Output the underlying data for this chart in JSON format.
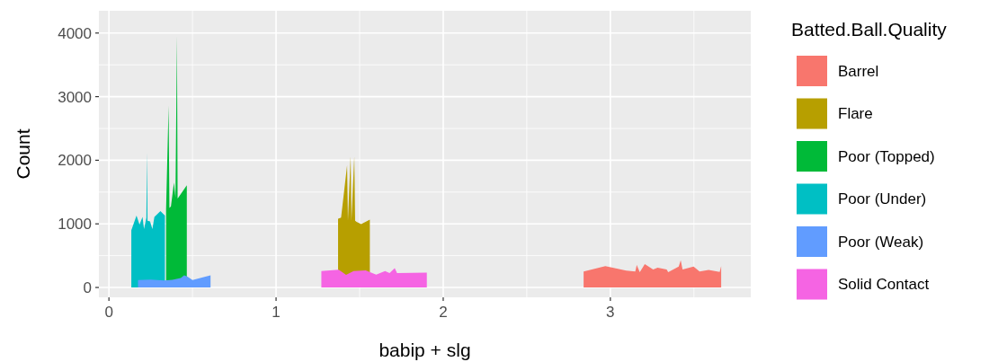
{
  "chart_data": {
    "type": "area",
    "xlabel": "babip + slg",
    "ylabel": "Count",
    "legend_title": "Batted.Ball.Quality",
    "xlim": [
      -0.06,
      3.84
    ],
    "xticks": [
      0,
      1,
      2,
      3
    ],
    "ylim": [
      -155,
      4350
    ],
    "yticks": [
      0,
      1000,
      2000,
      3000,
      4000
    ],
    "grid": true,
    "legend": "right",
    "series": [
      {
        "name": "Barrel",
        "color": "#f8766d",
        "x": [
          2.84,
          2.97,
          3.095,
          3.149,
          3.158,
          3.176,
          3.206,
          3.256,
          3.283,
          3.337,
          3.346,
          3.409,
          3.421,
          3.432,
          3.498,
          3.534,
          3.588,
          3.654,
          3.663
        ],
        "values": [
          250,
          335,
          264,
          250,
          353,
          240,
          367,
          283,
          310,
          283,
          240,
          330,
          429,
          283,
          330,
          250,
          275,
          245,
          334
        ]
      },
      {
        "name": "Flare",
        "color": "#b79f00",
        "x": [
          1.371,
          1.389,
          1.425,
          1.43,
          1.446,
          1.451,
          1.468,
          1.473,
          1.482,
          1.509,
          1.561
        ],
        "values": [
          1080,
          1100,
          1920,
          1050,
          2060,
          1050,
          2060,
          1050,
          1030,
          995,
          1065
        ]
      },
      {
        "name": "Poor (Topped)",
        "color": "#00ba38",
        "x": [
          0.342,
          0.357,
          0.362,
          0.371,
          0.389,
          0.398,
          0.407,
          0.411,
          0.416,
          0.466
        ],
        "values": [
          1230,
          2860,
          1250,
          1275,
          1650,
          1415,
          3950,
          1400,
          1415,
          1605
        ]
      },
      {
        "name": "Poor (Under)",
        "color": "#00bfc4",
        "x": [
          0.134,
          0.165,
          0.183,
          0.201,
          0.21,
          0.224,
          0.228,
          0.231,
          0.246,
          0.26,
          0.272,
          0.308,
          0.335
        ],
        "values": [
          900,
          1130,
          990,
          1110,
          920,
          1095,
          2120,
          1050,
          1040,
          920,
          1110,
          1200,
          1130
        ]
      },
      {
        "name": "Poor (Weak)",
        "color": "#619cff",
        "x": [
          0.174,
          0.25,
          0.33,
          0.38,
          0.43,
          0.45,
          0.47,
          0.5,
          0.608
        ],
        "values": [
          118,
          125,
          110,
          120,
          150,
          190,
          170,
          118,
          190
        ]
      },
      {
        "name": "Solid Contact",
        "color": "#f564e3",
        "x": [
          1.271,
          1.375,
          1.419,
          1.464,
          1.536,
          1.599,
          1.652,
          1.679,
          1.71,
          1.724,
          1.902
        ],
        "values": [
          258,
          280,
          197,
          258,
          270,
          200,
          258,
          225,
          305,
          225,
          235
        ]
      }
    ]
  }
}
